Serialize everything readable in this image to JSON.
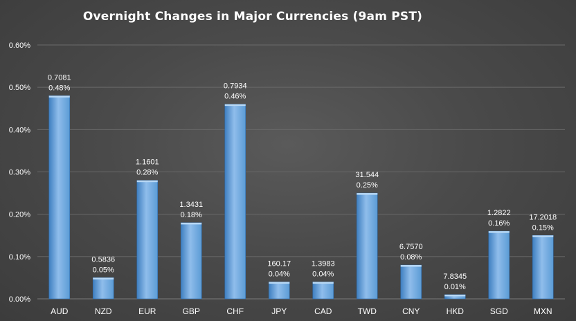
{
  "chart_data": {
    "type": "bar",
    "title": "Overnight Changes in Major Currencies (9am PST)",
    "categories": [
      "AUD",
      "NZD",
      "EUR",
      "GBP",
      "CHF",
      "JPY",
      "CAD",
      "TWD",
      "CNY",
      "HKD",
      "SGD",
      "MXN"
    ],
    "values": [
      0.48,
      0.05,
      0.28,
      0.18,
      0.46,
      0.04,
      0.04,
      0.25,
      0.08,
      0.01,
      0.16,
      0.15
    ],
    "value_labels": [
      "0.48%",
      "0.05%",
      "0.28%",
      "0.18%",
      "0.46%",
      "0.04%",
      "0.04%",
      "0.25%",
      "0.08%",
      "0.01%",
      "0.16%",
      "0.15%"
    ],
    "rate_labels": [
      "0.7081",
      "0.5836",
      "1.1601",
      "1.3431",
      "0.7934",
      "160.17",
      "1.3983",
      "31.544",
      "6.7570",
      "7.8345",
      "1.2822",
      "17.2018"
    ],
    "y_ticks": [
      "0.00%",
      "0.10%",
      "0.20%",
      "0.30%",
      "0.40%",
      "0.50%",
      "0.60%"
    ],
    "ylim": [
      0,
      0.6
    ],
    "xlabel": "",
    "ylabel": "",
    "grid": true,
    "legend": "none",
    "colors": {
      "bar": "#5b9bd5",
      "bar_light": "#8fbdeb",
      "bar_dark": "#3f7fc0",
      "grid": "#6a6a6a"
    }
  }
}
